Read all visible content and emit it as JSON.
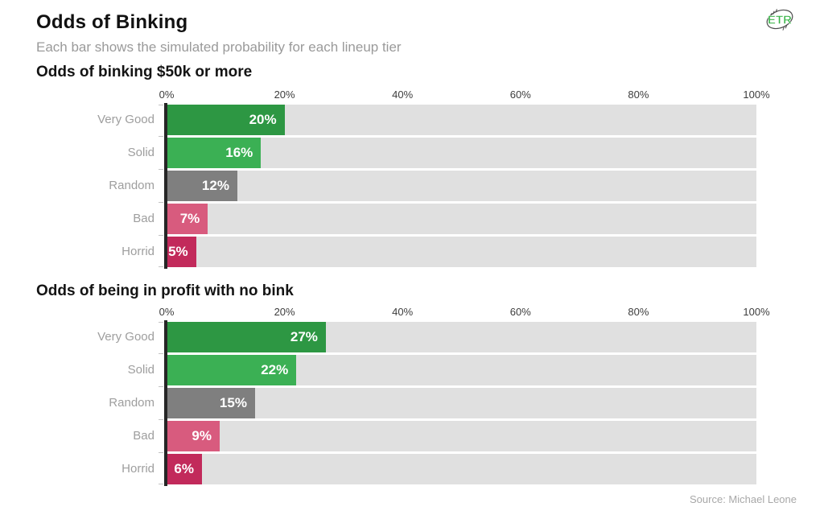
{
  "page": {
    "title": "Odds of Binking",
    "subtitle": "Each bar shows the simulated probability for each lineup tier",
    "source": "Source: Michael Leone",
    "logo_text": "ETR"
  },
  "colors": {
    "very_good_green": "#2d9743",
    "solid_green": "#3bb054",
    "random_gray": "#7f7f7f",
    "bad_pink": "#d85b7e",
    "horrid_crimson": "#c22a5b",
    "track_background": "#e0e0e0",
    "axis_line": "#262626",
    "category_label_text": "#9e9e9e",
    "logo_green": "#3bb54a"
  },
  "chart_data": [
    {
      "type": "bar",
      "orientation": "horizontal",
      "title": "Odds of binking $50k or more",
      "categories": [
        "Very Good",
        "Solid",
        "Random",
        "Bad",
        "Horrid"
      ],
      "values": [
        20,
        16,
        12,
        7,
        5
      ],
      "value_labels": [
        "20%",
        "16%",
        "12%",
        "7%",
        "5%"
      ],
      "bar_colors": [
        "#2d9743",
        "#3bb054",
        "#7f7f7f",
        "#d85b7e",
        "#c22a5b"
      ],
      "xlim": [
        0,
        100
      ],
      "x_ticks": [
        "0%",
        "20%",
        "40%",
        "60%",
        "80%",
        "100%"
      ],
      "grid": false,
      "legend": "none"
    },
    {
      "type": "bar",
      "orientation": "horizontal",
      "title": "Odds of being in profit with no bink",
      "categories": [
        "Very Good",
        "Solid",
        "Random",
        "Bad",
        "Horrid"
      ],
      "values": [
        27,
        22,
        15,
        9,
        6
      ],
      "value_labels": [
        "27%",
        "22%",
        "15%",
        "9%",
        "6%"
      ],
      "bar_colors": [
        "#2d9743",
        "#3bb054",
        "#7f7f7f",
        "#d85b7e",
        "#c22a5b"
      ],
      "xlim": [
        0,
        100
      ],
      "x_ticks": [
        "0%",
        "20%",
        "40%",
        "60%",
        "80%",
        "100%"
      ],
      "grid": false,
      "legend": "none"
    }
  ]
}
